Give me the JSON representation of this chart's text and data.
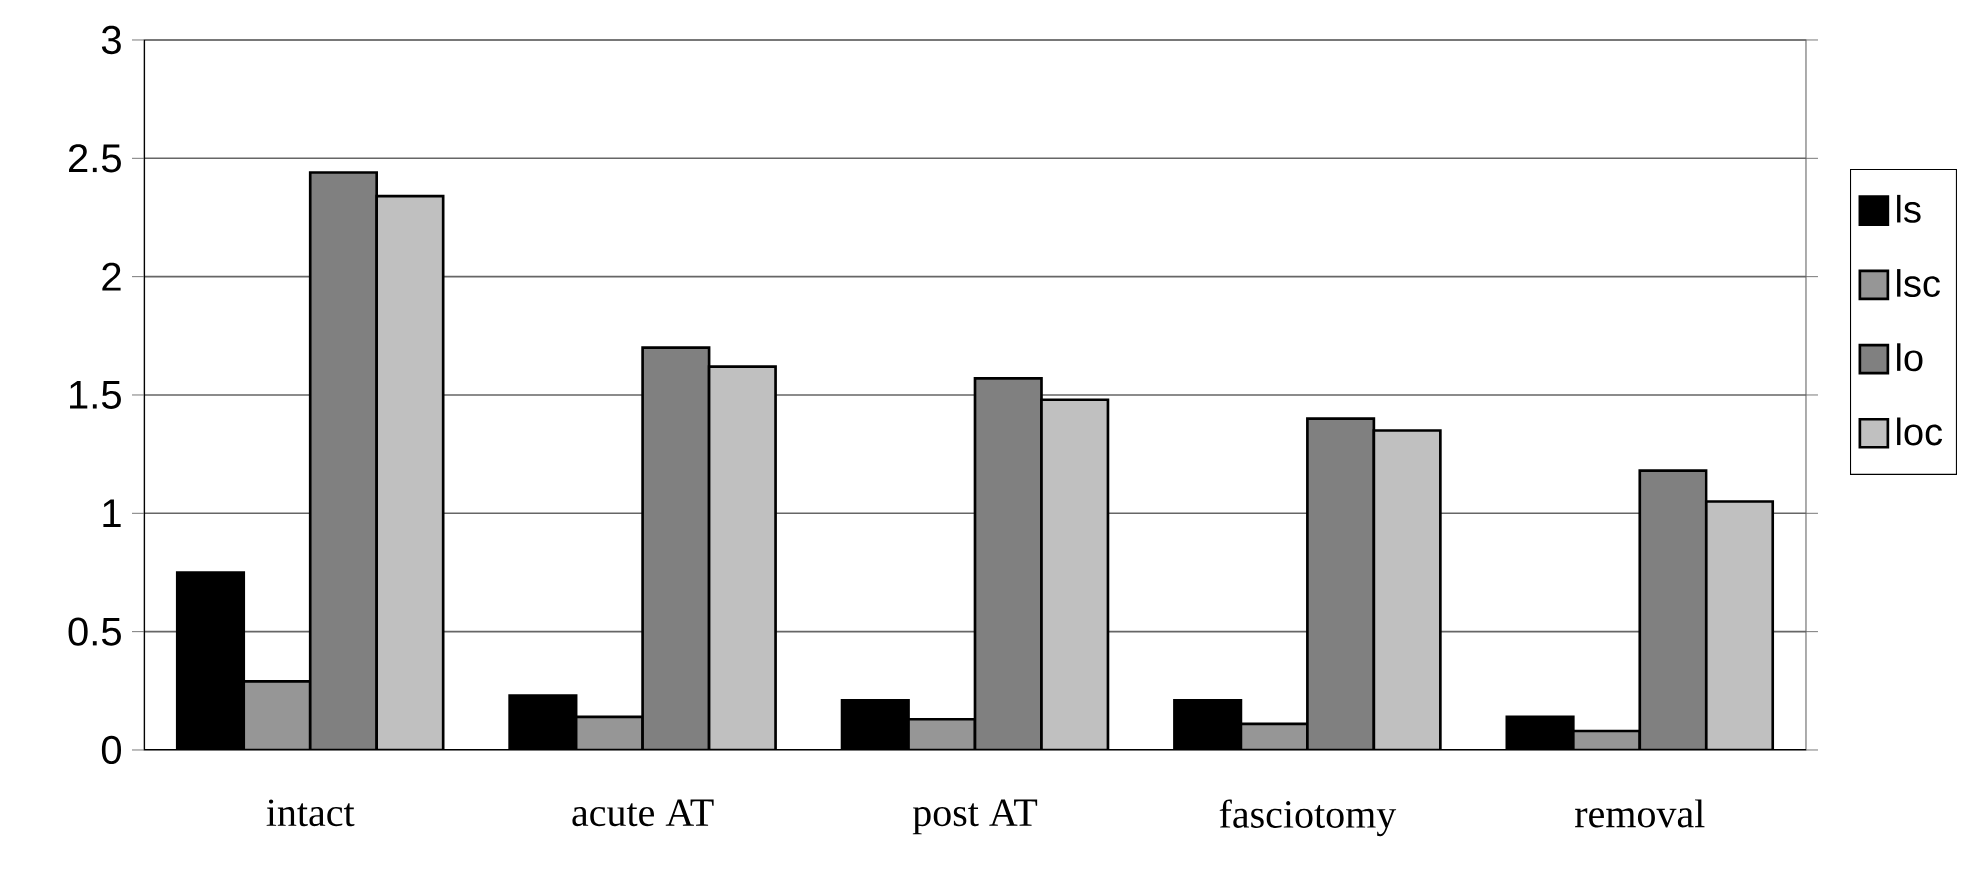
{
  "chart_data": {
    "type": "bar",
    "categories": [
      "intact",
      "acute AT",
      "post AT",
      "fasciotomy",
      "removal"
    ],
    "series": [
      {
        "name": "ls",
        "color": "#000000",
        "values": [
          0.75,
          0.23,
          0.21,
          0.21,
          0.14
        ]
      },
      {
        "name": "lsc",
        "color": "#969696",
        "values": [
          0.29,
          0.14,
          0.13,
          0.11,
          0.08
        ]
      },
      {
        "name": "lo",
        "color": "#808080",
        "values": [
          2.44,
          1.7,
          1.57,
          1.4,
          1.18
        ]
      },
      {
        "name": "loc",
        "color": "#c0c0c0",
        "values": [
          2.34,
          1.62,
          1.48,
          1.35,
          1.05
        ]
      }
    ],
    "ylim": [
      0,
      3
    ],
    "yticks": [
      0,
      0.5,
      1,
      1.5,
      2,
      2.5,
      3
    ],
    "grid": "y",
    "legend": "right"
  }
}
